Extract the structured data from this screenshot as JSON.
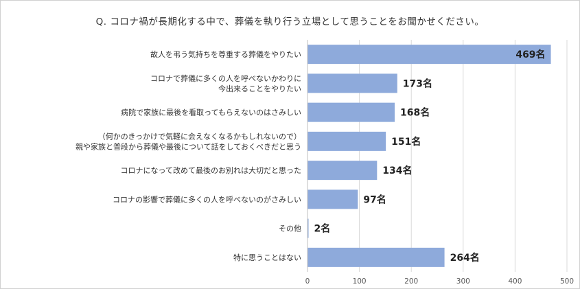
{
  "chart_data": {
    "type": "bar",
    "orientation": "horizontal",
    "title": "Q. コロナ禍が長期化する中で、葬儀を執り行う立場として思うことをお聞かせください。",
    "categories": [
      [
        "故人を弔う気持ちを尊重する葬儀をやりたい"
      ],
      [
        "コロナで葬儀に多くの人を呼べないかわりに",
        "今出来ることをやりたい"
      ],
      [
        "病院で家族に最後を看取ってもらえないのはさみしい"
      ],
      [
        "（何かのきっかけで気軽に会えなくなるかもしれないので）",
        "親や家族と普段から葬儀や最後について話をしておくべきだと思う"
      ],
      [
        "コロナになって改めて最後のお別れは大切だと思った"
      ],
      [
        "コロナの影響で葬儀に多くの人を呼べないのがさみしい"
      ],
      [
        "その他"
      ],
      [
        "特に思うことはない"
      ]
    ],
    "values": [
      469,
      173,
      168,
      151,
      134,
      97,
      2,
      264
    ],
    "value_labels": [
      "469名",
      "173名",
      "168名",
      "151名",
      "134名",
      "97名",
      "2名",
      "264名"
    ],
    "xlim": [
      0,
      500
    ],
    "xticks": [
      "0",
      "100",
      "200",
      "300",
      "400",
      "500"
    ],
    "grid": true,
    "legend": "none",
    "bar_color": "#8eaadb"
  }
}
